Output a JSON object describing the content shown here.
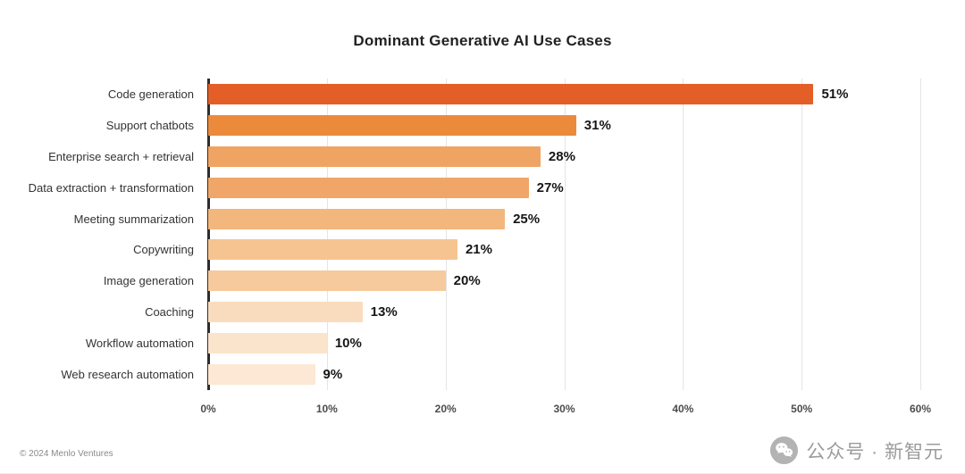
{
  "chart_data": {
    "type": "bar",
    "orientation": "horizontal",
    "title": "Dominant Generative AI Use Cases",
    "categories": [
      "Code generation",
      "Support chatbots",
      "Enterprise search + retrieval",
      "Data extraction + transformation",
      "Meeting summarization",
      "Copywriting",
      "Image generation",
      "Coaching",
      "Workflow automation",
      "Web research automation"
    ],
    "values": [
      51,
      31,
      28,
      27,
      25,
      21,
      20,
      13,
      10,
      9
    ],
    "value_labels": [
      "51%",
      "31%",
      "28%",
      "27%",
      "25%",
      "21%",
      "20%",
      "13%",
      "10%",
      "9%"
    ],
    "bar_colors": [
      "#e45f28",
      "#ec8a3c",
      "#f0a463",
      "#f0a668",
      "#f3b67c",
      "#f6c491",
      "#f6ca9c",
      "#f9dcbd",
      "#fbe4cc",
      "#fce8d4"
    ],
    "xlabel": "",
    "ylabel": "",
    "xlim": [
      0,
      60
    ],
    "x_ticks": [
      "0%",
      "10%",
      "20%",
      "30%",
      "40%",
      "50%",
      "60%"
    ],
    "grid": true,
    "legend": false
  },
  "footer": {
    "copyright": "© 2024 Menlo Ventures",
    "brand_icon": "wechat-icon",
    "brand_text": "公众号 · 新智元"
  },
  "colors": {
    "gridline": "#e4e4e4",
    "axis_line": "#2d2d2d",
    "title_text": "#222222",
    "label_text": "#333333",
    "value_text": "#161616",
    "tick_text": "#4c4c4c",
    "footer_text": "#8a8a8a",
    "brand_text": "#9b9b9b",
    "brand_icon": "#b3b3b3"
  }
}
